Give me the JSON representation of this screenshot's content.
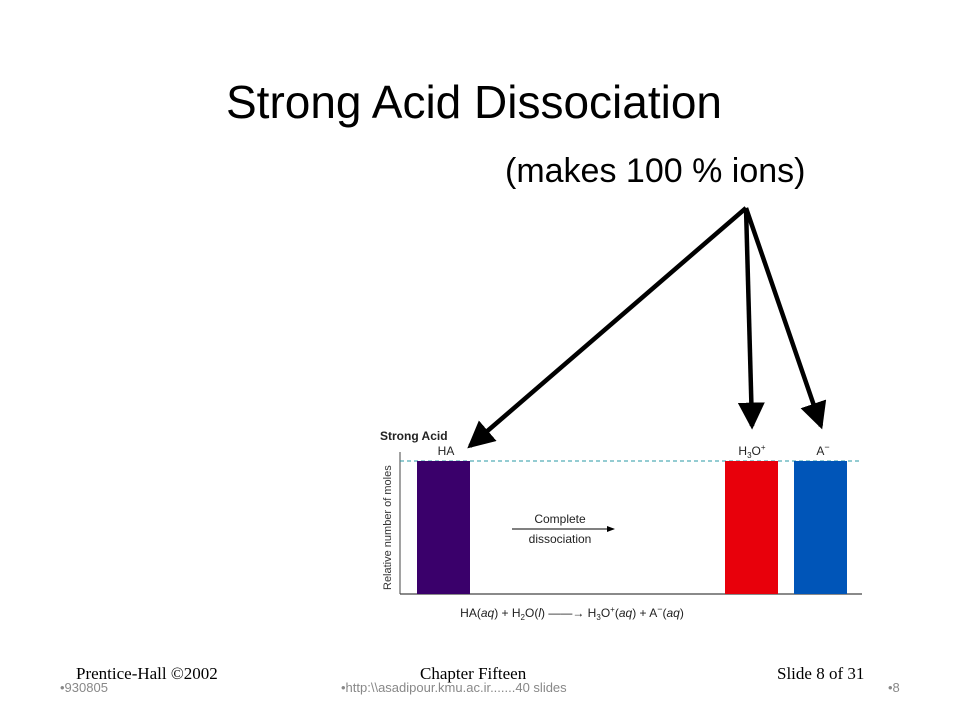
{
  "slide": {
    "title": "Strong Acid Dissociation",
    "subtitle": "(makes 100 % ions)"
  },
  "figure": {
    "heading": "Strong Acid",
    "y_axis_label": "Relative number of moles",
    "bars": [
      {
        "label": "HA",
        "color": "#3a006b"
      },
      {
        "label_main": "H",
        "label_sub": "3",
        "label_mid": "O",
        "label_sup": "+",
        "color": "#e8000b"
      },
      {
        "label_main": "A",
        "label_sup": "−",
        "color": "#0055b8"
      }
    ],
    "arrow_text_top": "Complete",
    "arrow_text_bottom": "dissociation",
    "equation": {
      "p1": "HA(",
      "aq1": "aq",
      "p2": ") + H",
      "sub1": "2",
      "p3": "O(",
      "l": "l",
      "p4": ") ——→ H",
      "sub2": "3",
      "p5": "O",
      "sup1": "+",
      "p6": "(",
      "aq2": "aq",
      "p7": ") + A",
      "sup2": "−",
      "p8": "(",
      "aq3": "aq",
      "p9": ")"
    }
  },
  "footer": {
    "publisher": "Prentice-Hall ©2002",
    "chapter": "Chapter Fifteen",
    "slide_count": "Slide 8 of 31",
    "code": "•930805",
    "url": "•http:\\\\asadipour.kmu.ac.ir.......40 slides",
    "page": "•8"
  }
}
